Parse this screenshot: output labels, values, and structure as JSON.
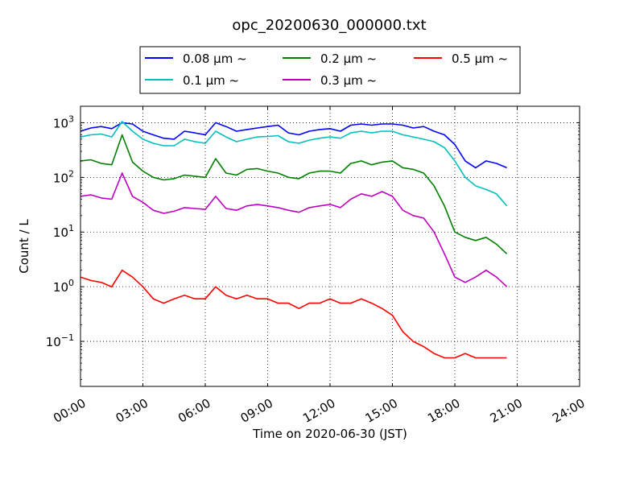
{
  "chart_data": {
    "type": "line",
    "title": "opc_20200630_000000.txt",
    "xlabel": "Time on 2020-06-30 (JST)",
    "ylabel": "Count / L",
    "x_unit": "hours",
    "xlim": [
      0,
      24
    ],
    "ylim": [
      0.015,
      2000
    ],
    "yscale": "log",
    "grid": true,
    "grid_style": "dotted",
    "legend_position": "top-center (above plot)",
    "xticks": [
      {
        "value": 0,
        "label": "00:00"
      },
      {
        "value": 3,
        "label": "03:00"
      },
      {
        "value": 6,
        "label": "06:00"
      },
      {
        "value": 9,
        "label": "09:00"
      },
      {
        "value": 12,
        "label": "12:00"
      },
      {
        "value": 15,
        "label": "15:00"
      },
      {
        "value": 18,
        "label": "18:00"
      },
      {
        "value": 21,
        "label": "21:00"
      },
      {
        "value": 24,
        "label": "24:00"
      }
    ],
    "yticks": [
      {
        "value": 0.1,
        "base": "10",
        "exp": "−1"
      },
      {
        "value": 1,
        "base": "10",
        "exp": "0"
      },
      {
        "value": 10,
        "base": "10",
        "exp": "1"
      },
      {
        "value": 100,
        "base": "10",
        "exp": "2"
      },
      {
        "value": 1000,
        "base": "10",
        "exp": "3"
      }
    ],
    "series": [
      {
        "name": "0.08 μm ~",
        "color": "#0000ff",
        "x": [
          0,
          0.5,
          1,
          1.5,
          2,
          2.5,
          3,
          3.5,
          4,
          4.5,
          5,
          5.5,
          6,
          6.5,
          7,
          7.5,
          8,
          8.5,
          9,
          9.5,
          10,
          10.5,
          11,
          11.5,
          12,
          12.5,
          13,
          13.5,
          14,
          14.5,
          15,
          15.5,
          16,
          16.5,
          17,
          17.5,
          18,
          18.5,
          19,
          19.5,
          20,
          20.5
        ],
        "values": [
          700,
          800,
          850,
          780,
          1000,
          950,
          700,
          600,
          520,
          500,
          700,
          650,
          600,
          1000,
          850,
          700,
          750,
          800,
          850,
          900,
          650,
          600,
          700,
          750,
          780,
          700,
          900,
          950,
          900,
          950,
          950,
          900,
          800,
          850,
          700,
          600,
          400,
          200,
          150,
          200,
          180,
          150
        ]
      },
      {
        "name": "0.1 μm ~",
        "color": "#00bfbf",
        "x": [
          0,
          0.5,
          1,
          1.5,
          2,
          2.5,
          3,
          3.5,
          4,
          4.5,
          5,
          5.5,
          6,
          6.5,
          7,
          7.5,
          8,
          8.5,
          9,
          9.5,
          10,
          10.5,
          11,
          11.5,
          12,
          12.5,
          13,
          13.5,
          14,
          14.5,
          15,
          15.5,
          16,
          16.5,
          17,
          17.5,
          18,
          18.5,
          19,
          19.5,
          20,
          20.5
        ],
        "values": [
          550,
          600,
          620,
          550,
          1050,
          700,
          500,
          420,
          380,
          380,
          500,
          450,
          420,
          700,
          550,
          450,
          500,
          550,
          560,
          580,
          450,
          420,
          480,
          520,
          550,
          520,
          650,
          700,
          650,
          700,
          700,
          600,
          550,
          500,
          450,
          350,
          200,
          100,
          70,
          60,
          50,
          30
        ]
      },
      {
        "name": "0.2 μm ~",
        "color": "#008000",
        "x": [
          0,
          0.5,
          1,
          1.5,
          2,
          2.5,
          3,
          3.5,
          4,
          4.5,
          5,
          5.5,
          6,
          6.5,
          7,
          7.5,
          8,
          8.5,
          9,
          9.5,
          10,
          10.5,
          11,
          11.5,
          12,
          12.5,
          13,
          13.5,
          14,
          14.5,
          15,
          15.5,
          16,
          16.5,
          17,
          17.5,
          18,
          18.5,
          19,
          19.5,
          20,
          20.5
        ],
        "values": [
          200,
          210,
          180,
          170,
          600,
          190,
          130,
          100,
          90,
          95,
          110,
          105,
          100,
          220,
          120,
          110,
          140,
          145,
          130,
          120,
          100,
          95,
          120,
          130,
          130,
          120,
          180,
          200,
          170,
          190,
          200,
          150,
          140,
          120,
          70,
          30,
          10,
          8,
          7,
          8,
          6,
          4
        ]
      },
      {
        "name": "0.3 μm ~",
        "color": "#bf00bf",
        "x": [
          0,
          0.5,
          1,
          1.5,
          2,
          2.5,
          3,
          3.5,
          4,
          4.5,
          5,
          5.5,
          6,
          6.5,
          7,
          7.5,
          8,
          8.5,
          9,
          9.5,
          10,
          10.5,
          11,
          11.5,
          12,
          12.5,
          13,
          13.5,
          14,
          14.5,
          15,
          15.5,
          16,
          16.5,
          17,
          17.5,
          18,
          18.5,
          19,
          19.5,
          20,
          20.5
        ],
        "values": [
          45,
          48,
          42,
          40,
          120,
          45,
          35,
          25,
          22,
          24,
          28,
          27,
          26,
          45,
          27,
          25,
          30,
          32,
          30,
          28,
          25,
          23,
          28,
          30,
          32,
          28,
          40,
          50,
          45,
          55,
          45,
          25,
          20,
          18,
          10,
          4,
          1.5,
          1.2,
          1.5,
          2,
          1.5,
          1
        ]
      },
      {
        "name": "0.5 μm ~",
        "color": "#ff0000",
        "x": [
          0,
          0.5,
          1,
          1.5,
          2,
          2.5,
          3,
          3.5,
          4,
          4.5,
          5,
          5.5,
          6,
          6.5,
          7,
          7.5,
          8,
          8.5,
          9,
          9.5,
          10,
          10.5,
          11,
          11.5,
          12,
          12.5,
          13,
          13.5,
          14,
          14.5,
          15,
          15.5,
          16,
          16.5,
          17,
          17.5,
          18,
          18.5,
          19,
          19.5,
          20,
          20.5
        ],
        "values": [
          1.5,
          1.3,
          1.2,
          1.0,
          2.0,
          1.5,
          1.0,
          0.6,
          0.5,
          0.6,
          0.7,
          0.6,
          0.6,
          1.0,
          0.7,
          0.6,
          0.7,
          0.6,
          0.6,
          0.5,
          0.5,
          0.4,
          0.5,
          0.5,
          0.6,
          0.5,
          0.5,
          0.6,
          0.5,
          0.4,
          0.3,
          0.15,
          0.1,
          0.08,
          0.06,
          0.05,
          0.05,
          0.06,
          0.05,
          0.05,
          0.05,
          0.05
        ]
      }
    ]
  }
}
